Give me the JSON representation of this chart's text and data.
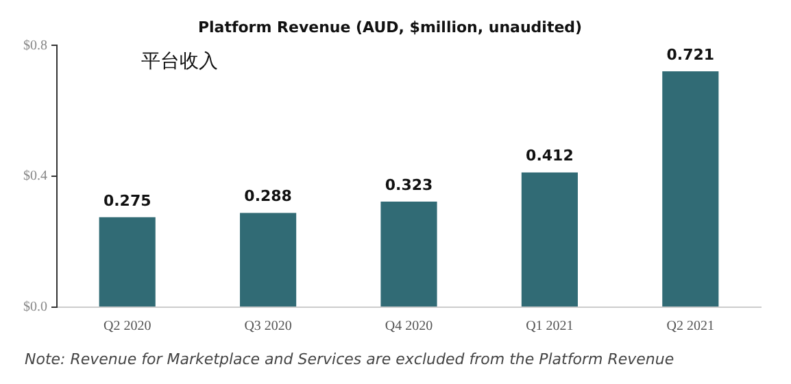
{
  "chart_data": {
    "type": "bar",
    "title": "Platform Revenue (AUD, $million, unaudited)",
    "subtitle": "平台收入",
    "categories": [
      "Q2 2020",
      "Q3 2020",
      "Q4 2020",
      "Q1 2021",
      "Q2 2021"
    ],
    "values": [
      0.275,
      0.288,
      0.323,
      0.412,
      0.721
    ],
    "color": "#316b75",
    "ylim": [
      0,
      0.8
    ],
    "yticks": [
      {
        "value": 0,
        "label": "$0.0"
      },
      {
        "value": 0.4,
        "label": "$0.4"
      },
      {
        "value": 0.8,
        "label": "$0.8"
      }
    ],
    "grid": false,
    "legend": false,
    "data_labels": true,
    "annotations": [
      "Note: Revenue for Marketplace and Services are excluded from the Platform Revenue"
    ]
  }
}
